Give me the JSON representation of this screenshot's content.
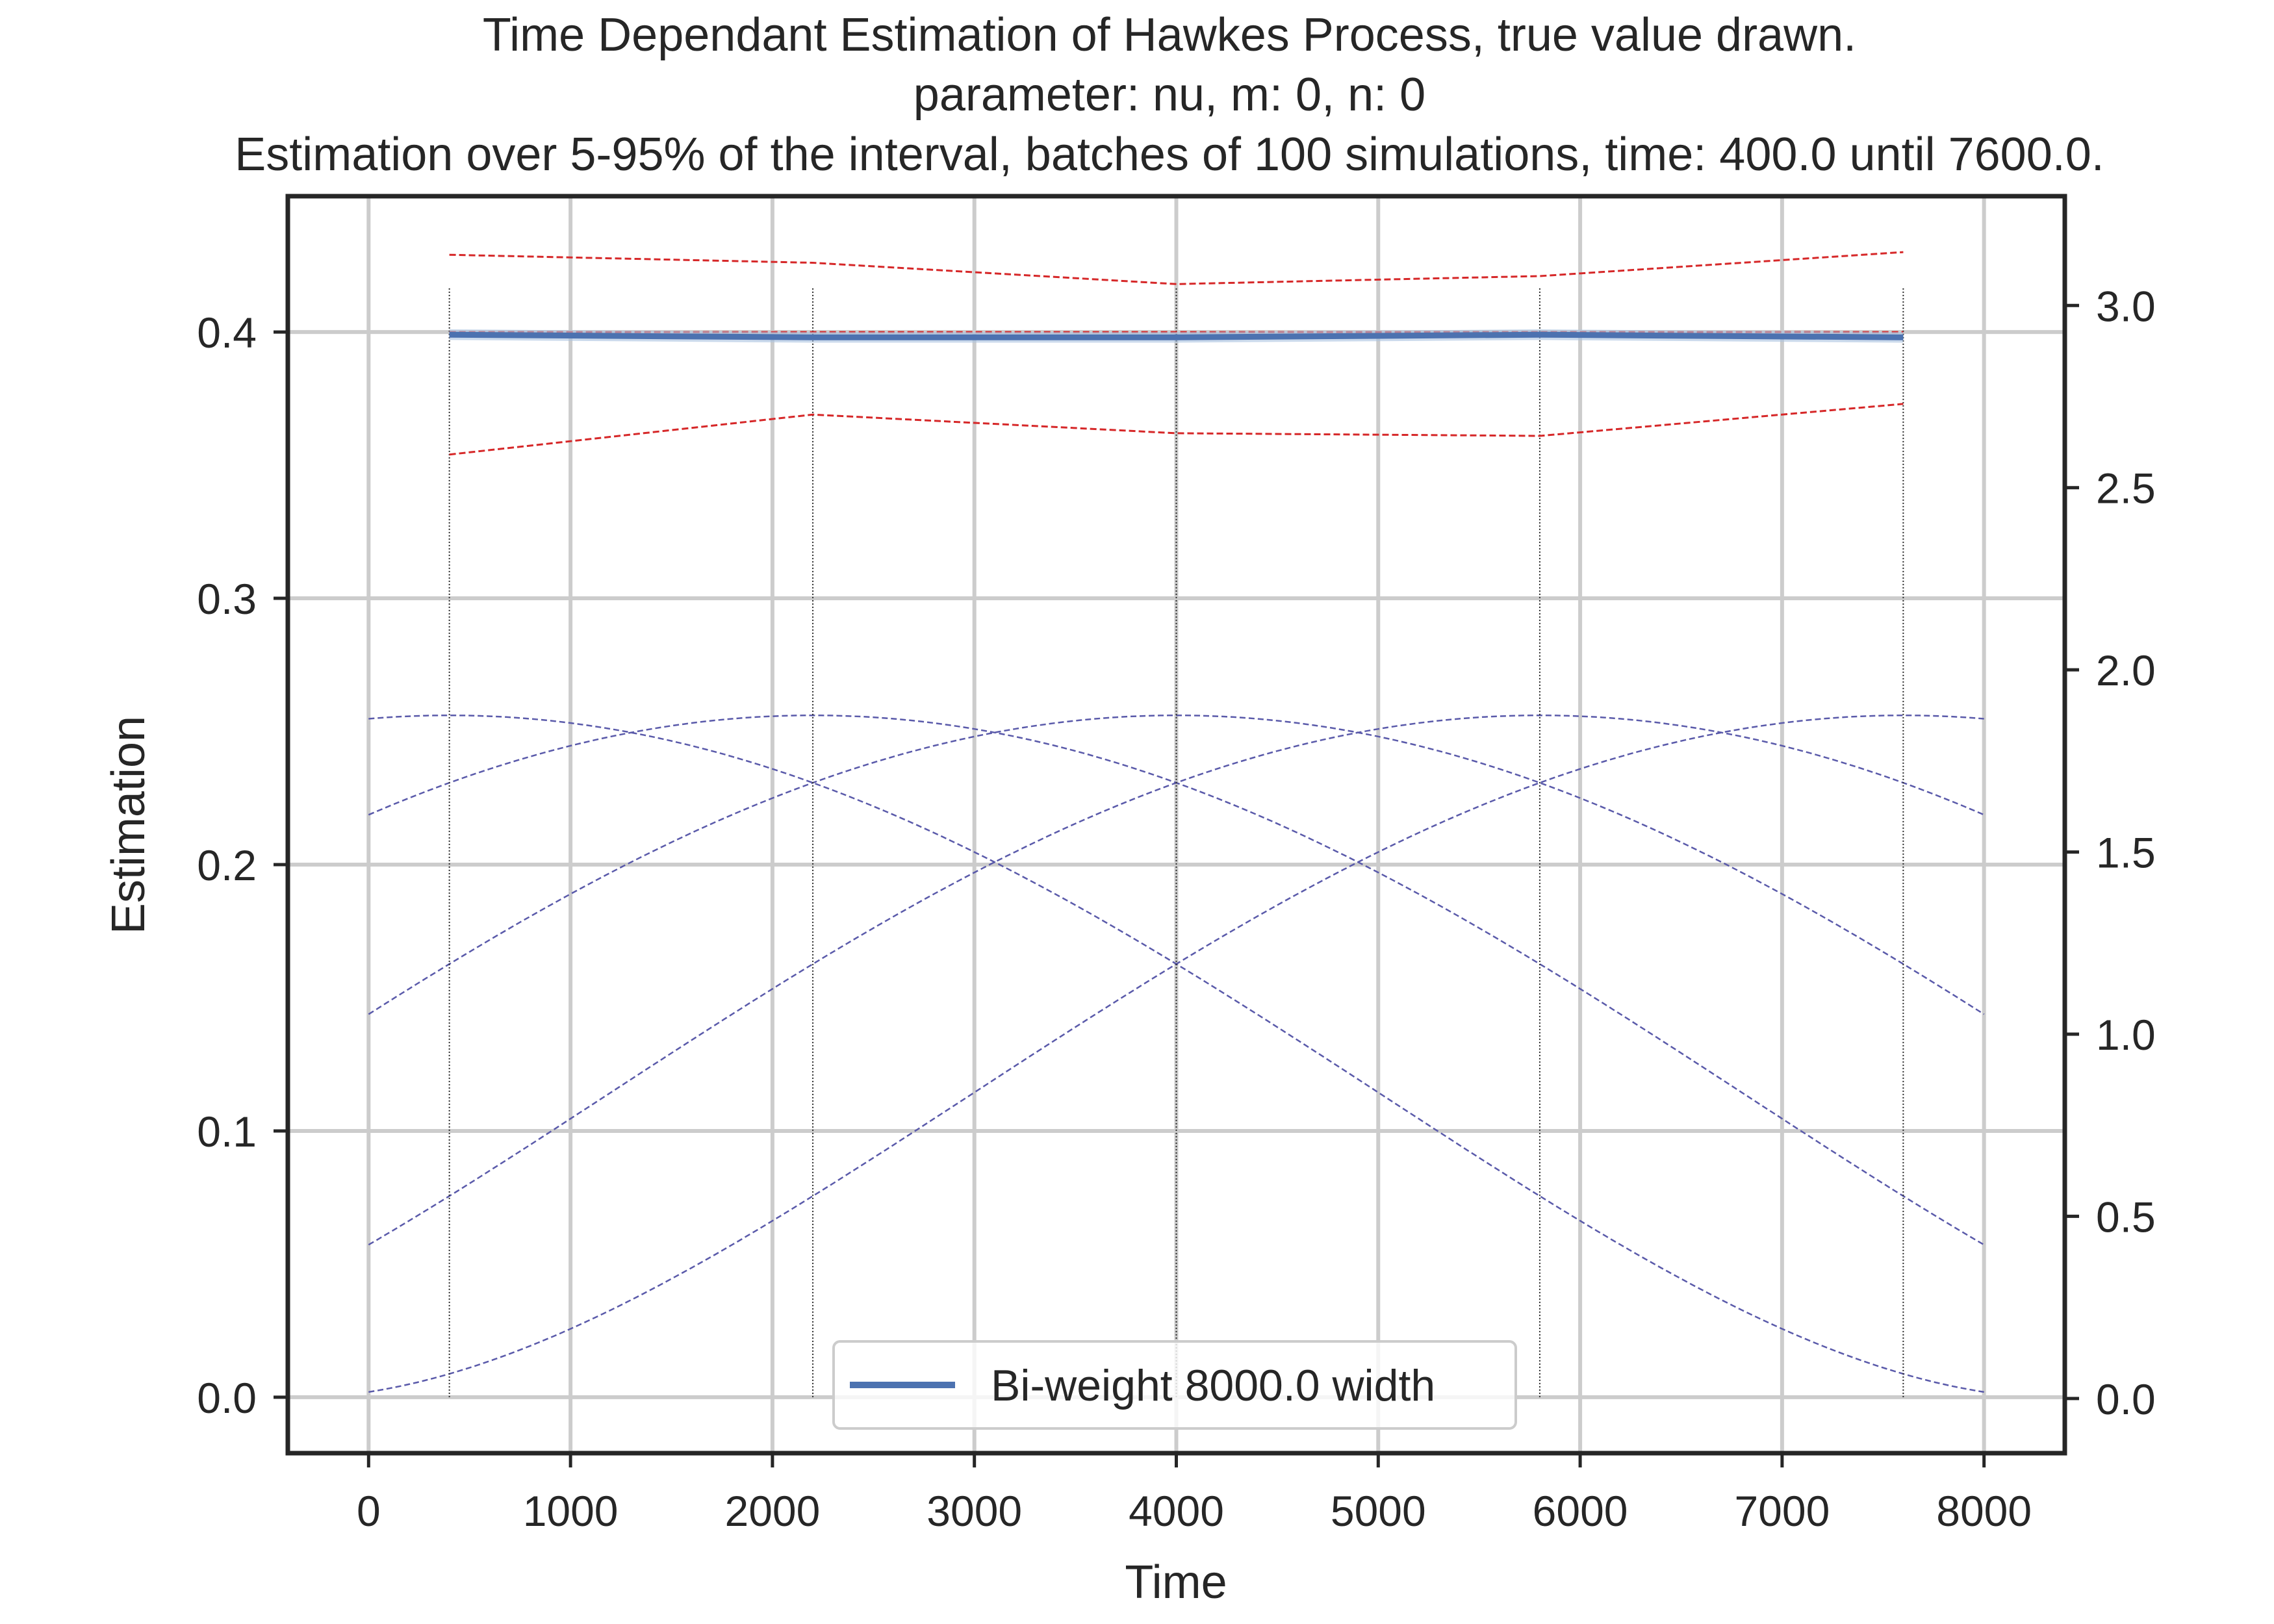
{
  "chart_data": {
    "type": "line",
    "title_lines": [
      "Time Dependant Estimation of Hawkes Process, true value drawn.",
      "parameter: nu, m: 0, n: 0",
      "Estimation over 5-95% of the interval, batches of 100 simulations, time: 400.0 until 7600.0."
    ],
    "xlabel": "Time",
    "ylabel": "Estimation",
    "xlim": [
      -400,
      8400
    ],
    "ylim": [
      -0.021,
      0.451
    ],
    "y2lim": [
      -0.15,
      3.3
    ],
    "xticks": [
      0,
      1000,
      2000,
      3000,
      4000,
      5000,
      6000,
      7000,
      8000
    ],
    "yticks": [
      0.0,
      0.1,
      0.2,
      0.3,
      0.4
    ],
    "y2ticks": [
      0.0,
      0.5,
      1.0,
      1.5,
      2.0,
      2.5,
      3.0
    ],
    "grid": true,
    "legend": {
      "position": "lower center",
      "entries": [
        "Bi-weight 8000.0 width"
      ]
    },
    "series": [
      {
        "name": "Bi-weight 8000.0 width",
        "color": "#4c72b0",
        "x": [
          400,
          2200,
          4000,
          5800,
          7600
        ],
        "y": [
          0.399,
          0.398,
          0.398,
          0.399,
          0.398
        ]
      }
    ],
    "band_color": "#a9c1e0",
    "band_lower": [
      0.397,
      0.396,
      0.396,
      0.397,
      0.396
    ],
    "band_upper": [
      0.401,
      0.4,
      0.4,
      0.401,
      0.4
    ],
    "true_value": {
      "color": "#d62728",
      "y": 0.4
    },
    "quantile_upper": {
      "color": "#d62728",
      "x": [
        400,
        2200,
        4000,
        5800,
        7600
      ],
      "y": [
        0.429,
        0.426,
        0.418,
        0.421,
        0.43
      ]
    },
    "quantile_lower": {
      "color": "#d62728",
      "x": [
        400,
        2200,
        4000,
        5800,
        7600
      ],
      "y": [
        0.354,
        0.369,
        0.362,
        0.361,
        0.373
      ]
    },
    "estimation_points": [
      400,
      2200,
      4000,
      5800,
      7600
    ],
    "kernels": {
      "color": "#5a5aaa",
      "axis": "right",
      "peak": 1.875,
      "half_width": 8000,
      "centers": [
        400,
        2200,
        4000,
        5800,
        7600
      ],
      "domain": [
        0,
        8000
      ]
    }
  }
}
